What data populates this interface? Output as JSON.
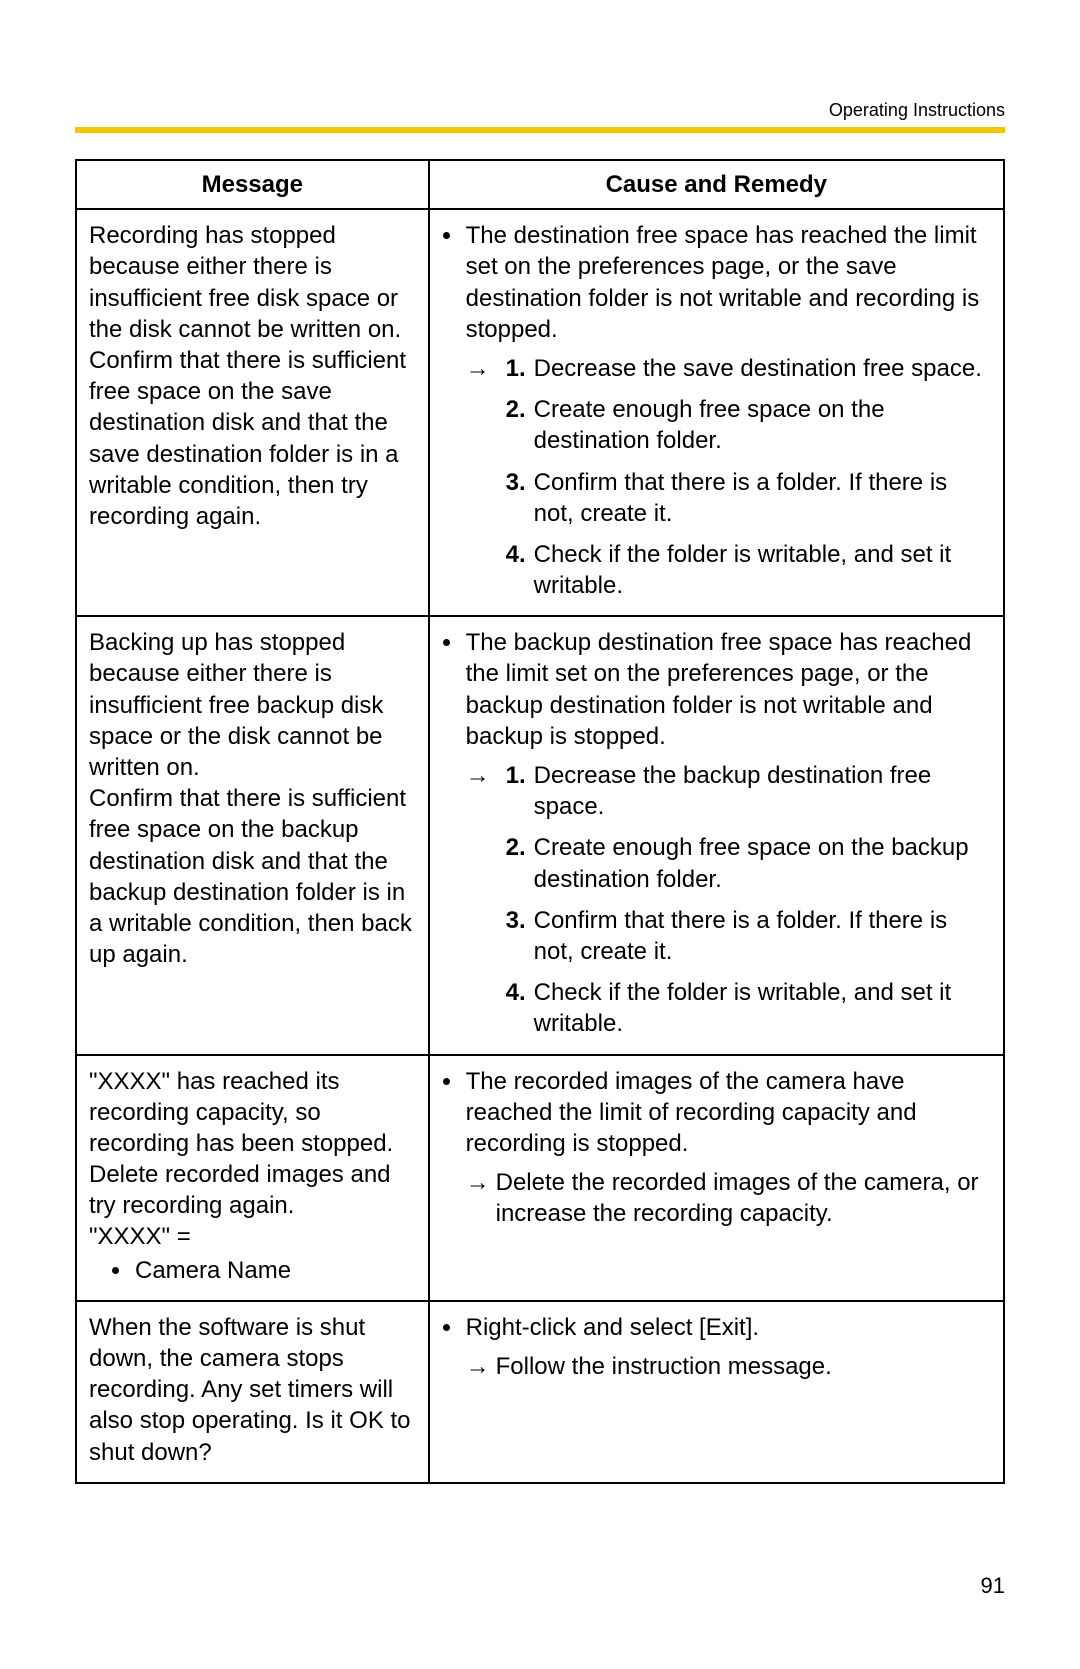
{
  "header": {
    "section_label": "Operating Instructions"
  },
  "page_number": "91",
  "accent_color": "#f2c500",
  "table": {
    "columns": [
      "Message",
      "Cause and Remedy"
    ],
    "rows": [
      {
        "message": {
          "text": "Recording has stopped because either there is insufficient free disk space or the disk cannot be written on.\nConfirm that there is sufficient free space on the save destination disk and that the save destination folder is in a writable condition, then try recording again."
        },
        "remedy": {
          "cause": "The destination free space has reached the limit set on the preferences page, or the save destination folder is not writable and recording is stopped.",
          "steps": [
            "Decrease the save destination free space.",
            "Create enough free space on the destination folder.",
            "Confirm that there is a folder. If there is not, create it.",
            "Check if the folder is writable, and set it writable."
          ]
        }
      },
      {
        "message": {
          "text": "Backing up has stopped because either there is insufficient free backup disk space or the disk cannot be written on.\nConfirm that there is sufficient free space on the backup destination disk and that the backup destination folder is in a writable condition, then back up again."
        },
        "remedy": {
          "cause": "The backup destination free space has reached the limit set on the preferences page, or the backup destination folder is not writable and backup is stopped.",
          "steps": [
            "Decrease the backup destination free space.",
            "Create enough free space on the backup destination folder.",
            "Confirm that there is a folder. If there is not, create it.",
            "Check if the folder is writable, and set it writable."
          ]
        }
      },
      {
        "message": {
          "text": "\"XXXX\" has reached its recording capacity, so recording has been stopped. Delete recorded images and try recording again.\n\"XXXX\" =",
          "bullets": [
            "Camera Name"
          ]
        },
        "remedy": {
          "cause": "The recorded images of the camera have reached the limit of recording capacity and recording is stopped.",
          "action": "Delete the recorded images of the camera, or increase the recording capacity."
        }
      },
      {
        "message": {
          "text": "When the software is shut down, the camera stops recording. Any set timers will also stop operating. Is it OK to shut down?"
        },
        "remedy": {
          "cause": "Right-click and select [Exit].",
          "action": "Follow the instruction message."
        }
      }
    ]
  }
}
